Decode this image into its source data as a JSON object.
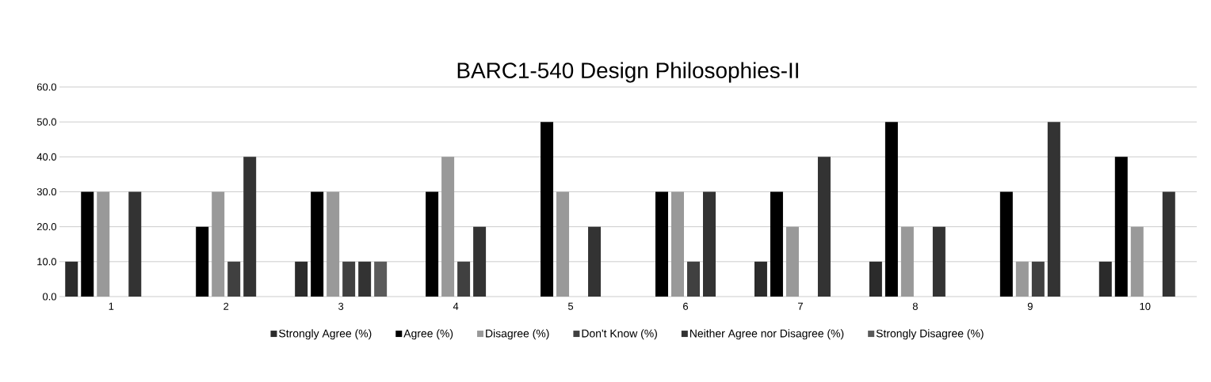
{
  "chart_data": {
    "type": "bar",
    "title": "BARC1-540 Design Philosophies-II",
    "categories": [
      "1",
      "2",
      "3",
      "4",
      "5",
      "6",
      "7",
      "8",
      "9",
      "10"
    ],
    "series": [
      {
        "name": "Strongly Agree (%)",
        "color": "#2b2b2b",
        "values": [
          10,
          0,
          10,
          0,
          0,
          0,
          10,
          10,
          0,
          10
        ]
      },
      {
        "name": "Agree (%)",
        "color": "#000000",
        "values": [
          30,
          20,
          30,
          30,
          50,
          30,
          30,
          50,
          30,
          40
        ]
      },
      {
        "name": "Disagree (%)",
        "color": "#999999",
        "values": [
          30,
          30,
          30,
          40,
          30,
          30,
          20,
          20,
          10,
          20
        ]
      },
      {
        "name": "Don't Know (%)",
        "color": "#404040",
        "values": [
          0,
          10,
          10,
          10,
          0,
          10,
          0,
          0,
          10,
          0
        ]
      },
      {
        "name": "Neither Agree nor Disagree (%)",
        "color": "#333333",
        "values": [
          30,
          40,
          10,
          20,
          20,
          30,
          40,
          20,
          50,
          30
        ]
      },
      {
        "name": "Strongly Disagree (%)",
        "color": "#5a5a5a",
        "values": [
          0,
          0,
          10,
          0,
          0,
          0,
          0,
          0,
          0,
          0
        ]
      }
    ],
    "ylim": [
      0,
      60
    ],
    "yticks": [
      {
        "value": 0,
        "label": "0.0"
      },
      {
        "value": 10,
        "label": "10.0"
      },
      {
        "value": 20,
        "label": "20.0"
      },
      {
        "value": 30,
        "label": "30.0"
      },
      {
        "value": 40,
        "label": "40.0"
      },
      {
        "value": 50,
        "label": "50.0"
      },
      {
        "value": 60,
        "label": "60.0"
      }
    ],
    "grid": "y",
    "legend": "bottom"
  }
}
